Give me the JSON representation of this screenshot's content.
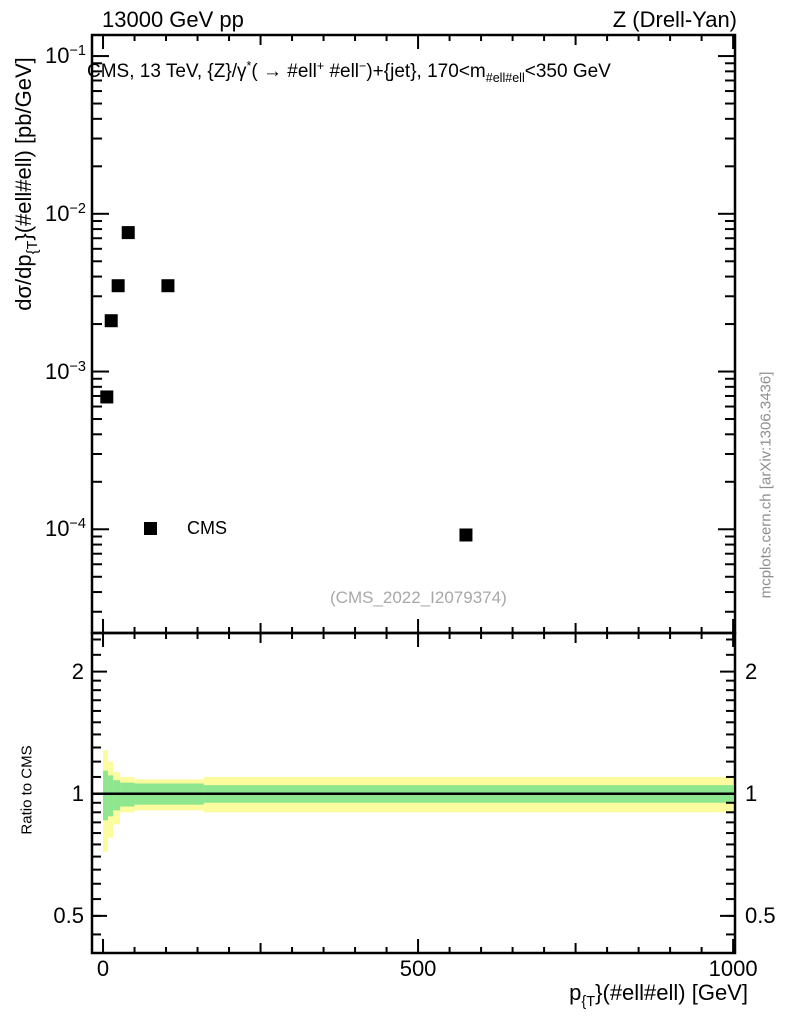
{
  "header": {
    "left": "13000 GeV pp",
    "right": "Z (Drell-Yan)"
  },
  "watermark": "(CMS_2022_I2079374)",
  "side_note": "mcplots.cern.ch [arXiv:1306.3436]",
  "legend": {
    "label": "CMS"
  },
  "colors": {
    "band_outer": "#fcfc9f",
    "band_inner": "#8ee78e",
    "marker": "#000000",
    "frame": "#000000",
    "gray_text": "#a8a8a8"
  },
  "title_runs": [
    {
      "t": "CMS, 13 TeV, {Z}/γ"
    },
    {
      "t": "*",
      "v": "sup"
    },
    {
      "t": "( →  #ell"
    },
    {
      "t": "+",
      "v": "sup"
    },
    {
      "t": " #ell"
    },
    {
      "t": "−",
      "v": "sup"
    },
    {
      "t": ")+{jet}, 170<m"
    },
    {
      "t": "#ell#ell",
      "v": "sub"
    },
    {
      "t": "<350 GeV"
    }
  ],
  "axes": {
    "y_label_runs": [
      {
        "t": "dσ/dp"
      },
      {
        "t": "{T",
        "v": "sub"
      },
      {
        "t": "}(#ell#ell) [pb/GeV]"
      }
    ],
    "x_label_runs": [
      {
        "t": "p"
      },
      {
        "t": "{T",
        "v": "sub"
      },
      {
        "t": "}(#ell#ell) [GeV]"
      }
    ],
    "ratio_label": "Ratio to CMS"
  },
  "chart_data": {
    "type": "scatter",
    "title": "CMS, 13 TeV, Z/γ*(→ ℓ+ ℓ−)+jet, 170<m(ℓℓ)<350 GeV",
    "subtitle_left": "13000 GeV pp",
    "subtitle_right": "Z (Drell-Yan)",
    "xlabel": "pT(ℓℓ) [GeV]",
    "ylabel": "dσ/dpT(ℓℓ) [pb/GeV]",
    "x_range": [
      -17.5,
      1003
    ],
    "x_ticks_major": [
      0,
      500,
      1000
    ],
    "x_ticks_medium": [
      250,
      750
    ],
    "x_tick_minor_step": 50,
    "y_scale": "log",
    "y_range": [
      2.2e-05,
      0.136
    ],
    "y_tick_exponents": [
      -1,
      -2,
      -3,
      -4
    ],
    "grid": false,
    "legend_position": "inside-left",
    "series_label": "CMS",
    "points": [
      {
        "x": 6,
        "y": 0.00069
      },
      {
        "x": 13,
        "y": 0.0021
      },
      {
        "x": 24,
        "y": 0.0035
      },
      {
        "x": 40,
        "y": 0.0076
      },
      {
        "x": 103,
        "y": 0.0035
      },
      {
        "x": 576,
        "y": 9.2e-05
      }
    ],
    "ratio_panel": {
      "ylabel": "Ratio to CMS",
      "y_scale": "log",
      "y_range": [
        0.405,
        2.49
      ],
      "y_ticks": [
        0.5,
        1,
        2
      ],
      "reference_line": 1,
      "band_segments": [
        {
          "x0": 0,
          "x1": 8,
          "outer": [
            0.72,
            1.28
          ],
          "inner": [
            0.86,
            1.14
          ]
        },
        {
          "x0": 8,
          "x1": 16,
          "outer": [
            0.78,
            1.2
          ],
          "inner": [
            0.88,
            1.11
          ]
        },
        {
          "x0": 16,
          "x1": 27,
          "outer": [
            0.84,
            1.13
          ],
          "inner": [
            0.91,
            1.08
          ]
        },
        {
          "x0": 27,
          "x1": 50,
          "outer": [
            0.9,
            1.1
          ],
          "inner": [
            0.93,
            1.065
          ]
        },
        {
          "x0": 50,
          "x1": 160,
          "outer": [
            0.91,
            1.085
          ],
          "inner": [
            0.94,
            1.06
          ]
        },
        {
          "x0": 160,
          "x1": 1000,
          "outer": [
            0.9,
            1.1
          ],
          "inner": [
            0.95,
            1.05
          ]
        }
      ]
    }
  }
}
